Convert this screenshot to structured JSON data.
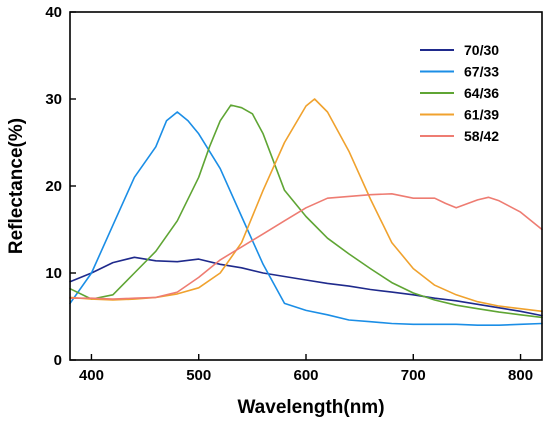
{
  "chart_data": {
    "type": "line",
    "title": "",
    "xlabel": "Wavelength(nm)",
    "ylabel": "Reflectance(%)",
    "xlim": [
      380,
      820
    ],
    "ylim": [
      0,
      40
    ],
    "xticks": [
      400,
      500,
      600,
      700,
      800
    ],
    "yticks": [
      0,
      10,
      20,
      30,
      40
    ],
    "grid": false,
    "legend_position": "top-right",
    "series": [
      {
        "name": "70/30",
        "color": "#1f2a8c",
        "x": [
          380,
          400,
          420,
          440,
          460,
          480,
          500,
          520,
          540,
          560,
          580,
          600,
          620,
          640,
          660,
          680,
          700,
          720,
          740,
          760,
          780,
          800,
          820
        ],
        "y": [
          9.0,
          10.0,
          11.2,
          11.8,
          11.4,
          11.3,
          11.6,
          11.0,
          10.6,
          10.0,
          9.6,
          9.2,
          8.8,
          8.5,
          8.1,
          7.8,
          7.5,
          7.1,
          6.8,
          6.4,
          6.0,
          5.6,
          5.1
        ]
      },
      {
        "name": "67/33",
        "color": "#1b8ee6",
        "x": [
          380,
          400,
          420,
          440,
          460,
          470,
          480,
          490,
          500,
          520,
          540,
          560,
          580,
          600,
          620,
          640,
          660,
          680,
          700,
          720,
          740,
          760,
          780,
          800,
          820
        ],
        "y": [
          6.5,
          10.0,
          15.5,
          21.0,
          24.5,
          27.5,
          28.5,
          27.5,
          26.0,
          22.0,
          16.5,
          11.0,
          6.5,
          5.7,
          5.2,
          4.6,
          4.4,
          4.2,
          4.1,
          4.1,
          4.1,
          4.0,
          4.0,
          4.1,
          4.2
        ]
      },
      {
        "name": "64/36",
        "color": "#5fa534",
        "x": [
          380,
          400,
          420,
          440,
          460,
          480,
          500,
          510,
          520,
          530,
          540,
          550,
          560,
          580,
          600,
          620,
          640,
          660,
          680,
          700,
          720,
          740,
          760,
          780,
          800,
          820
        ],
        "y": [
          8.2,
          7.0,
          7.5,
          10.0,
          12.5,
          16.0,
          21.0,
          24.5,
          27.5,
          29.3,
          29.0,
          28.3,
          26.0,
          19.5,
          16.5,
          14.0,
          12.2,
          10.5,
          8.9,
          7.7,
          6.9,
          6.3,
          5.9,
          5.5,
          5.2,
          4.9
        ]
      },
      {
        "name": "61/39",
        "color": "#f0a22e",
        "x": [
          380,
          400,
          420,
          440,
          460,
          480,
          500,
          520,
          540,
          560,
          580,
          600,
          608,
          620,
          640,
          660,
          680,
          700,
          720,
          740,
          760,
          780,
          800,
          820
        ],
        "y": [
          7.2,
          7.0,
          6.9,
          7.0,
          7.2,
          7.6,
          8.3,
          10.0,
          13.5,
          19.5,
          25.0,
          29.2,
          30.0,
          28.5,
          24.0,
          18.5,
          13.5,
          10.5,
          8.6,
          7.5,
          6.7,
          6.2,
          5.9,
          5.6
        ]
      },
      {
        "name": "58/42",
        "color": "#ee7c72",
        "x": [
          380,
          400,
          420,
          440,
          460,
          480,
          500,
          520,
          540,
          560,
          580,
          600,
          620,
          640,
          660,
          680,
          700,
          720,
          730,
          740,
          760,
          770,
          780,
          800,
          820
        ],
        "y": [
          7.1,
          7.1,
          7.0,
          7.1,
          7.2,
          7.8,
          9.5,
          11.5,
          13.0,
          14.5,
          16.0,
          17.5,
          18.6,
          18.8,
          19.0,
          19.1,
          18.6,
          18.6,
          18.0,
          17.5,
          18.4,
          18.7,
          18.3,
          17.0,
          15.0
        ]
      }
    ]
  }
}
